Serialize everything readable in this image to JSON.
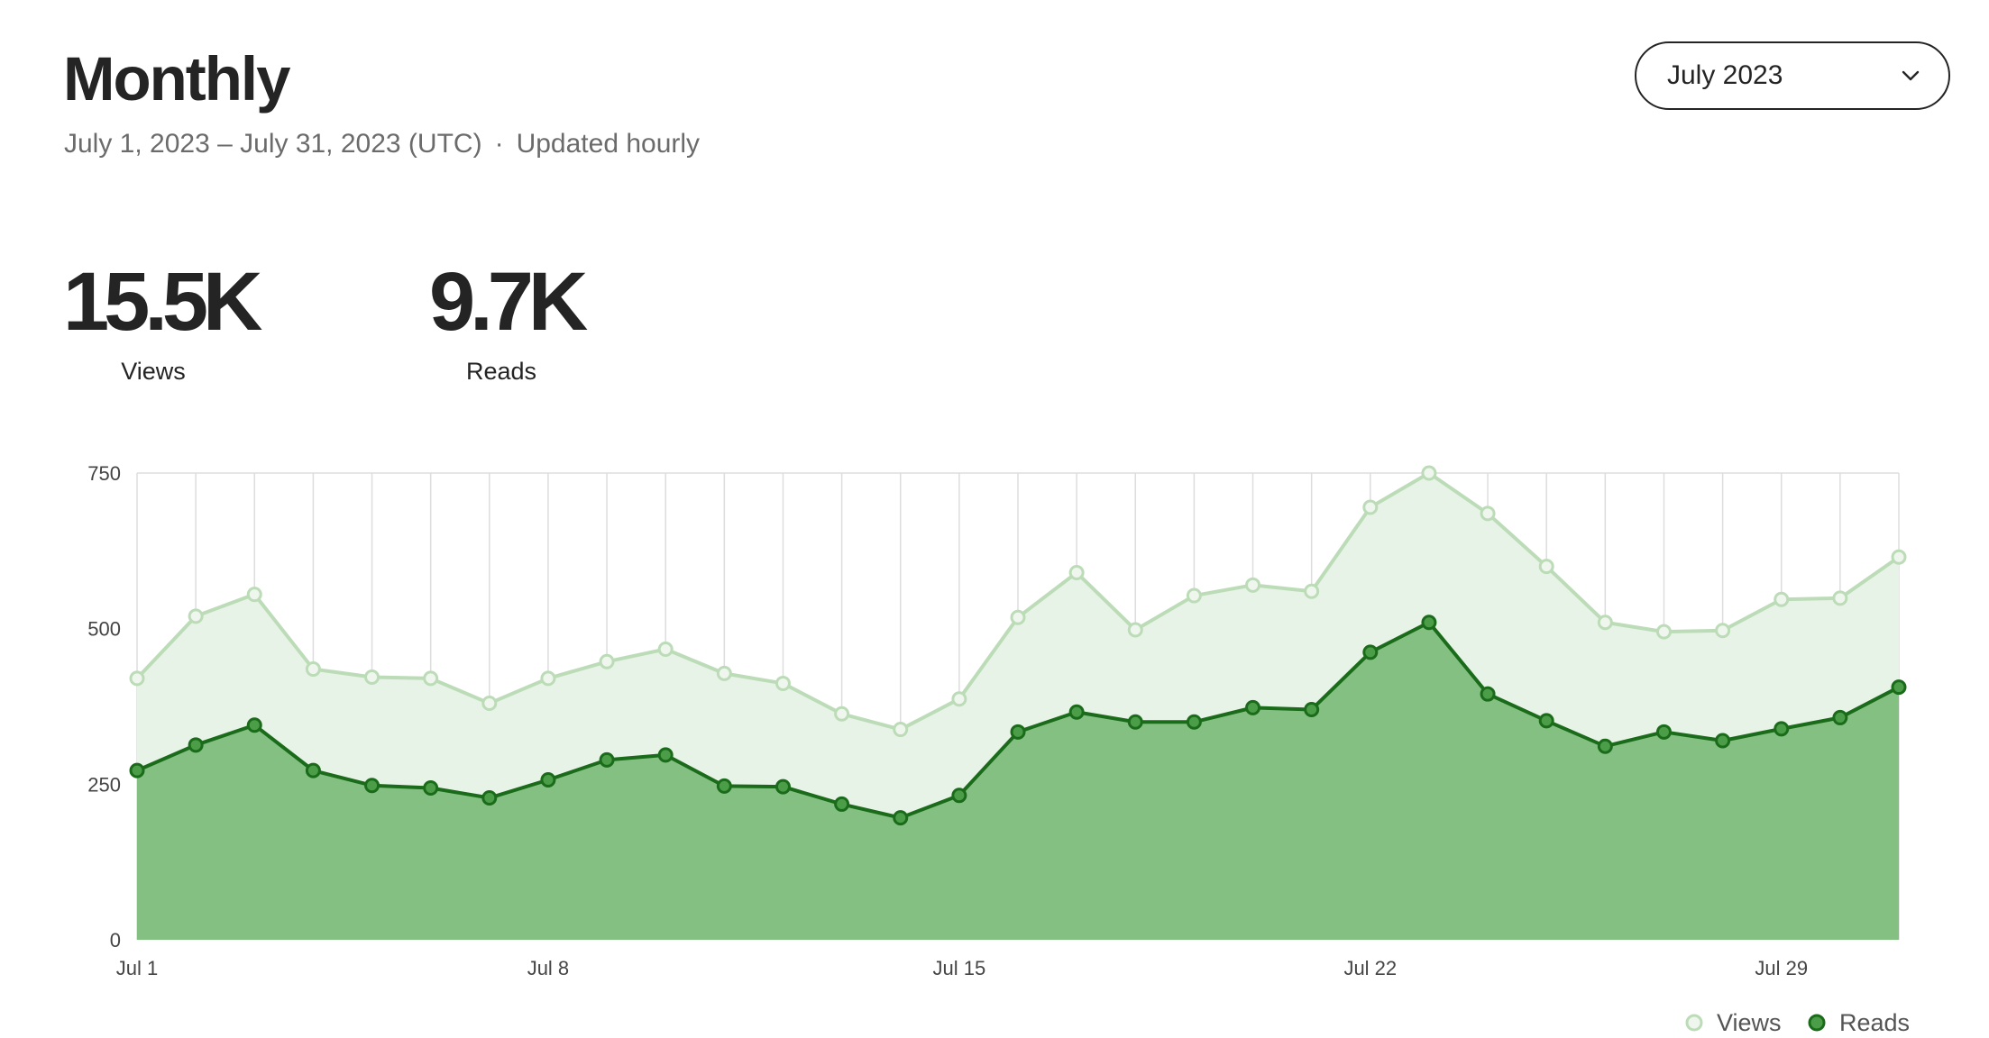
{
  "header": {
    "title": "Monthly",
    "date_range": "July 1, 2023 – July 31, 2023 (UTC)",
    "separator": "·",
    "update_note": "Updated hourly"
  },
  "month_select": {
    "selected": "July 2023",
    "icon": "chevron-down-icon"
  },
  "stats": {
    "views": {
      "value": "15.5K",
      "label": "Views"
    },
    "reads": {
      "value": "9.7K",
      "label": "Reads"
    }
  },
  "colors": {
    "views_line": "#bcdcb8",
    "views_fill": "#e8f3e7",
    "reads_line": "#1a6b1a",
    "reads_fill": "#84c082",
    "reads_marker": "#4c9d48",
    "grid": "#dddddd"
  },
  "chart_data": {
    "type": "area",
    "x": [
      "Jul 1",
      "Jul 2",
      "Jul 3",
      "Jul 4",
      "Jul 5",
      "Jul 6",
      "Jul 7",
      "Jul 8",
      "Jul 9",
      "Jul 10",
      "Jul 11",
      "Jul 12",
      "Jul 13",
      "Jul 14",
      "Jul 15",
      "Jul 16",
      "Jul 17",
      "Jul 18",
      "Jul 19",
      "Jul 20",
      "Jul 21",
      "Jul 22",
      "Jul 23",
      "Jul 24",
      "Jul 25",
      "Jul 26",
      "Jul 27",
      "Jul 28",
      "Jul 29",
      "Jul 30",
      "Jul 31"
    ],
    "x_tick_labels": [
      "Jul 1",
      "Jul 8",
      "Jul 15",
      "Jul 22",
      "Jul 29"
    ],
    "y_ticks": [
      0,
      250,
      500,
      750
    ],
    "ylim": [
      0,
      750
    ],
    "grid": "vertical",
    "legend_position": "bottom-right",
    "series": [
      {
        "name": "Views",
        "values": [
          420,
          520,
          555,
          435,
          422,
          420,
          380,
          420,
          447,
          467,
          428,
          412,
          363,
          338,
          387,
          518,
          590,
          498,
          553,
          570,
          560,
          695,
          750,
          685,
          600,
          510,
          495,
          497,
          547,
          549,
          615
        ]
      },
      {
        "name": "Reads",
        "values": [
          272,
          313,
          345,
          272,
          248,
          244,
          228,
          257,
          289,
          297,
          247,
          246,
          218,
          196,
          232,
          334,
          366,
          350,
          350,
          373,
          370,
          462,
          510,
          395,
          352,
          311,
          334,
          320,
          339,
          357,
          406
        ]
      }
    ]
  }
}
